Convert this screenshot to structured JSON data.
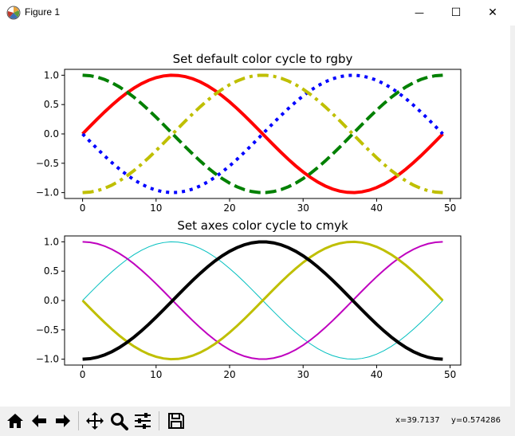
{
  "window": {
    "title": "Figure 1",
    "minimize_glyph": "—",
    "maximize_glyph": "☐",
    "close_glyph": "✕"
  },
  "toolbar": {
    "buttons": [
      {
        "name": "home-icon"
      },
      {
        "name": "back-icon"
      },
      {
        "name": "forward-icon"
      },
      {
        "name": "pan-icon"
      },
      {
        "name": "zoom-icon"
      },
      {
        "name": "configure-subplots-icon"
      },
      {
        "name": "save-icon"
      }
    ],
    "coord_x": "x=39.7137",
    "coord_y": "y=0.574286"
  },
  "chart_data": [
    {
      "type": "line",
      "title": "Set default color cycle to rgby",
      "xlabel": "",
      "ylabel": "",
      "xlim": [
        -2.45,
        51.45
      ],
      "ylim": [
        -1.1,
        1.1
      ],
      "xticks": [
        "0",
        "10",
        "20",
        "30",
        "40",
        "50"
      ],
      "yticks": [
        "1.0",
        "0.5",
        "0.0",
        "−0.5",
        "−1.0"
      ],
      "grid": false,
      "x": {
        "start": 0,
        "end": 49,
        "count": 50
      },
      "series": [
        {
          "function": "sin(2*pi*x/49)",
          "color": "#ff0000",
          "linestyle": "solid",
          "linewidth": 4
        },
        {
          "function": "cos(2*pi*x/49)",
          "color": "#008000",
          "linestyle": "dashed",
          "linewidth": 4
        },
        {
          "function": "-sin(2*pi*x/49)",
          "color": "#0000ff",
          "linestyle": "dotted",
          "linewidth": 4
        },
        {
          "function": "-cos(2*pi*x/49)",
          "color": "#bfbf00",
          "linestyle": "dashdot",
          "linewidth": 4
        }
      ]
    },
    {
      "type": "line",
      "title": "Set axes color cycle to cmyk",
      "xlabel": "",
      "ylabel": "",
      "xlim": [
        -2.45,
        51.45
      ],
      "ylim": [
        -1.1,
        1.1
      ],
      "xticks": [
        "0",
        "10",
        "20",
        "30",
        "40",
        "50"
      ],
      "yticks": [
        "1.0",
        "0.5",
        "0.0",
        "−0.5",
        "−1.0"
      ],
      "grid": false,
      "x": {
        "start": 0,
        "end": 49,
        "count": 50
      },
      "series": [
        {
          "function": "sin(2*pi*x/49)",
          "color": "#00bfbf",
          "linestyle": "solid",
          "linewidth": 1
        },
        {
          "function": "cos(2*pi*x/49)",
          "color": "#bf00bf",
          "linestyle": "solid",
          "linewidth": 2
        },
        {
          "function": "-sin(2*pi*x/49)",
          "color": "#bfbf00",
          "linestyle": "solid",
          "linewidth": 3
        },
        {
          "function": "-cos(2*pi*x/49)",
          "color": "#000000",
          "linestyle": "solid",
          "linewidth": 4
        }
      ]
    }
  ]
}
